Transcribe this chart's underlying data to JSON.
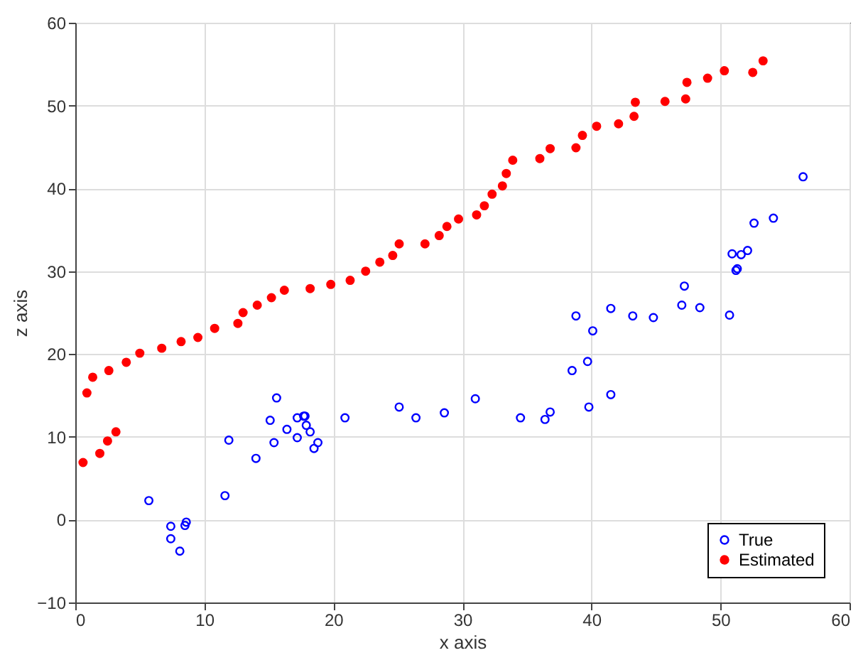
{
  "chart_data": {
    "type": "scatter",
    "xlabel": "x axis",
    "ylabel": "z axis",
    "xlim": [
      0,
      60
    ],
    "ylim": [
      -10,
      60
    ],
    "xticks": [
      0,
      10,
      20,
      30,
      40,
      50,
      60
    ],
    "yticks": [
      -10,
      0,
      10,
      20,
      30,
      40,
      50,
      60
    ],
    "grid": true,
    "legend": "bottom right",
    "marker": "circle",
    "series": [
      {
        "name": "True",
        "color": "#0000ff",
        "x": [
          5.7,
          7.4,
          7.4,
          8.1,
          8.5,
          8.6,
          11.6,
          11.9,
          14.0,
          15.1,
          15.4,
          15.6,
          16.4,
          17.2,
          17.2,
          17.7,
          17.8,
          17.9,
          18.2,
          18.8,
          18.5,
          20.9,
          25.1,
          26.4,
          28.6,
          31.0,
          34.5,
          36.4,
          36.8,
          38.5,
          38.8,
          39.7,
          39.8,
          40.1,
          41.5,
          41.5,
          43.2,
          44.8,
          47.0,
          47.2,
          48.4,
          50.7,
          51.2,
          51.3,
          50.9,
          51.6,
          52.1,
          52.6,
          54.1,
          56.4
        ],
        "values": [
          2.3,
          -0.8,
          -2.3,
          -3.8,
          -0.7,
          -0.3,
          2.9,
          9.6,
          7.4,
          12.0,
          9.3,
          14.7,
          10.9,
          9.9,
          12.3,
          12.5,
          12.5,
          11.4,
          10.6,
          9.3,
          8.6,
          12.3,
          13.6,
          12.3,
          12.9,
          14.6,
          12.3,
          12.1,
          13.0,
          18.0,
          24.6,
          19.1,
          13.6,
          22.8,
          15.1,
          25.5,
          24.6,
          24.4,
          25.9,
          28.2,
          25.6,
          24.7,
          30.1,
          30.3,
          32.1,
          32.0,
          32.5,
          35.8,
          36.4,
          41.4
        ]
      },
      {
        "name": "Estimated",
        "color": "#ff0000",
        "x": [
          0.6,
          0.9,
          1.35,
          1.9,
          2.5,
          3.15,
          2.6,
          3.95,
          5.0,
          6.7,
          8.2,
          9.5,
          10.8,
          12.6,
          13.0,
          14.1,
          15.2,
          16.2,
          18.2,
          19.8,
          21.3,
          22.5,
          23.6,
          24.6,
          25.1,
          27.1,
          28.2,
          28.8,
          29.7,
          31.1,
          31.7,
          32.3,
          33.1,
          33.4,
          33.9,
          36.0,
          36.8,
          38.8,
          39.3,
          40.4,
          42.1,
          43.3,
          43.4,
          45.7,
          47.3,
          47.4,
          49.0,
          50.3,
          52.5,
          53.3
        ],
        "values": [
          6.9,
          15.3,
          17.2,
          8.0,
          9.5,
          10.6,
          18.0,
          19.0,
          20.1,
          20.7,
          21.5,
          22.0,
          23.1,
          23.7,
          25.0,
          25.9,
          26.8,
          27.7,
          27.9,
          28.4,
          28.9,
          30.0,
          31.1,
          31.9,
          33.3,
          33.3,
          34.3,
          35.4,
          36.3,
          36.8,
          37.9,
          39.3,
          40.3,
          41.8,
          43.4,
          43.6,
          44.8,
          44.9,
          46.4,
          47.5,
          47.8,
          48.7,
          50.4,
          50.5,
          50.8,
          52.8,
          53.3,
          54.2,
          54.0,
          55.4
        ]
      }
    ]
  }
}
